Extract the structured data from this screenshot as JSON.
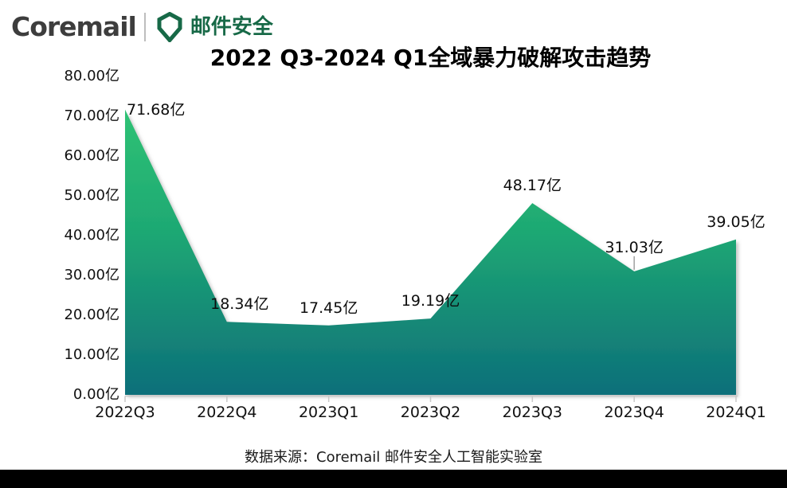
{
  "header": {
    "brand": "Coremail",
    "product": "邮件安全"
  },
  "chart_data": {
    "type": "area",
    "title": "2022 Q3-2024 Q1全域暴力破解攻击趋势",
    "categories": [
      "2022Q3",
      "2022Q4",
      "2023Q1",
      "2023Q2",
      "2023Q3",
      "2023Q4",
      "2024Q1"
    ],
    "values": [
      71.68,
      18.34,
      17.45,
      19.19,
      48.17,
      31.03,
      39.05
    ],
    "data_labels": [
      "71.68亿",
      "18.34亿",
      "17.45亿",
      "19.19亿",
      "48.17亿",
      "31.03亿",
      "39.05亿"
    ],
    "unit": "亿",
    "y_ticks": [
      "0.00亿",
      "10.00亿",
      "20.00亿",
      "30.00亿",
      "40.00亿",
      "50.00亿",
      "60.00亿",
      "70.00亿",
      "80.00亿"
    ],
    "y_tick_values": [
      0,
      10,
      20,
      30,
      40,
      50,
      60,
      70,
      80
    ],
    "ylim": [
      0,
      80
    ],
    "grid": false,
    "legend": "none",
    "xlabel": "",
    "ylabel": "",
    "colors": {
      "area_gradient_top": "#2FC274",
      "area_gradient_mid": "#1EA973",
      "area_gradient_bottom": "#0D6F7A",
      "axis_line": "#c9c9c9",
      "leader_line": "#a6a6a6",
      "label_text": "#0d0d0d"
    }
  },
  "footer": {
    "source_note": "数据来源：Coremail 邮件安全人工智能实验室"
  }
}
